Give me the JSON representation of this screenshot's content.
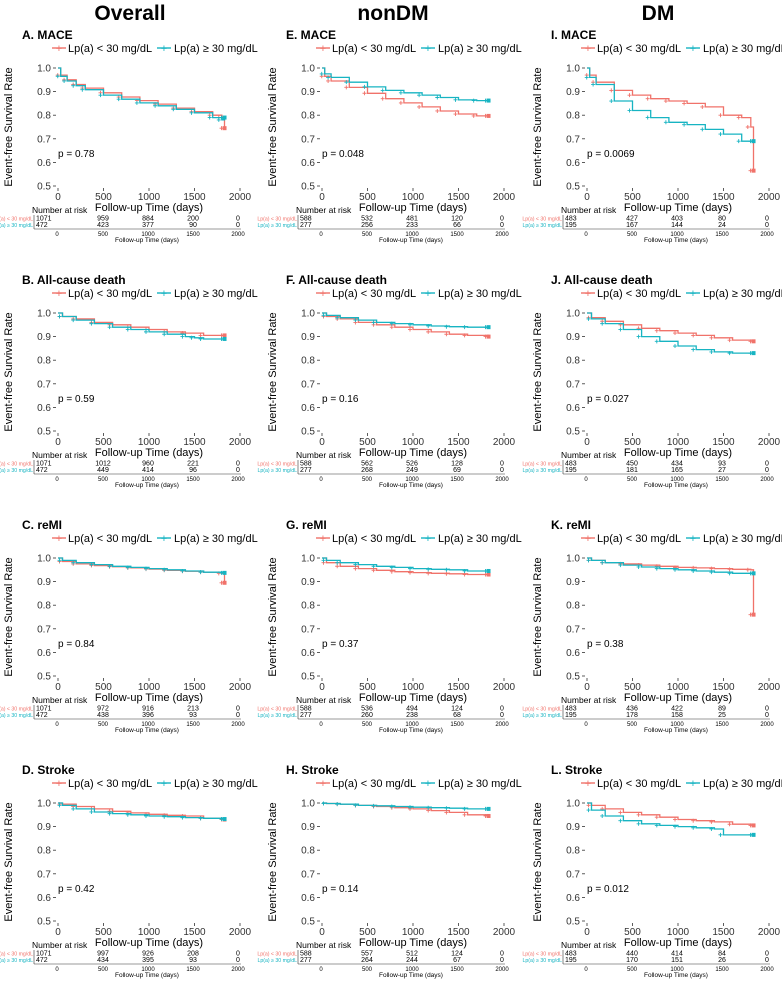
{
  "column_titles": [
    "Overall",
    "nonDM",
    "DM"
  ],
  "colors": {
    "low": "#F0726A",
    "high": "#17B4C2"
  },
  "shared": {
    "legend_low": "Lp(a) < 30 mg/dL",
    "legend_high": "Lp(a) ≥ 30 mg/dL",
    "risk_low": "Lp(a) < 30 mg/dL",
    "risk_high": "Lp(a) ≥ 30 mg/dL",
    "ylabel": "Event-free Survival Rate",
    "xlabel": "Follow-up Time (days)",
    "risk_title": "Number at risk",
    "risk_xlabel": "Follow-up Time (days)",
    "x_ticks": [
      0,
      500,
      1000,
      1500,
      2000
    ],
    "x_tick_labels": [
      "0",
      "500",
      "1000",
      "1500",
      "2000"
    ],
    "y_ticks": [
      0.5,
      0.6,
      0.7,
      0.8,
      0.9,
      1.0
    ],
    "y_tick_labels": [
      "0.5",
      "0.6",
      "0.7",
      "0.8",
      "0.9",
      "1.0"
    ],
    "xlim": [
      0,
      2000
    ],
    "ylim": [
      0.5,
      1.0
    ]
  },
  "chart_data": [
    {
      "type": "line",
      "title": "A. MACE",
      "pvalue": "p = 0.78",
      "risk": {
        "low": [
          "1071",
          "959",
          "884",
          "200",
          "0"
        ],
        "high": [
          "472",
          "423",
          "377",
          "90",
          "0"
        ]
      },
      "series": [
        {
          "name": "Lp(a) < 30 mg/dL",
          "x": [
            0,
            30,
            100,
            200,
            300,
            500,
            700,
            900,
            1100,
            1300,
            1500,
            1700,
            1800,
            1830
          ],
          "y": [
            1.0,
            0.97,
            0.95,
            0.93,
            0.915,
            0.895,
            0.877,
            0.862,
            0.847,
            0.83,
            0.815,
            0.8,
            0.79,
            0.745
          ]
        },
        {
          "name": "Lp(a) ≥ 30 mg/dL",
          "x": [
            0,
            30,
            100,
            200,
            300,
            500,
            700,
            900,
            1100,
            1300,
            1500,
            1700,
            1800,
            1830
          ],
          "y": [
            1.0,
            0.965,
            0.945,
            0.925,
            0.908,
            0.885,
            0.868,
            0.852,
            0.84,
            0.825,
            0.81,
            0.79,
            0.78,
            0.79
          ]
        }
      ]
    },
    {
      "type": "line",
      "title": "E. MACE",
      "pvalue": "p = 0.048",
      "risk": {
        "low": [
          "588",
          "532",
          "481",
          "120",
          "0"
        ],
        "high": [
          "277",
          "256",
          "233",
          "66",
          "0"
        ]
      },
      "series": [
        {
          "name": "Lp(a) < 30 mg/dL",
          "x": [
            0,
            30,
            100,
            300,
            500,
            700,
            900,
            1100,
            1300,
            1500,
            1700,
            1830
          ],
          "y": [
            1.0,
            0.965,
            0.945,
            0.918,
            0.893,
            0.87,
            0.852,
            0.835,
            0.818,
            0.805,
            0.797,
            0.797
          ]
        },
        {
          "name": "Lp(a) ≥ 30 mg/dL",
          "x": [
            0,
            30,
            100,
            300,
            500,
            700,
            900,
            1100,
            1300,
            1500,
            1700,
            1830
          ],
          "y": [
            1.0,
            0.975,
            0.96,
            0.94,
            0.92,
            0.905,
            0.895,
            0.885,
            0.875,
            0.865,
            0.862,
            0.862
          ]
        }
      ]
    },
    {
      "type": "line",
      "title": "I. MACE",
      "pvalue": "p = 0.0069",
      "risk": {
        "low": [
          "483",
          "427",
          "403",
          "80",
          "0"
        ],
        "high": [
          "195",
          "167",
          "144",
          "24",
          "0"
        ]
      },
      "series": [
        {
          "name": "Lp(a) < 30 mg/dL",
          "x": [
            0,
            30,
            100,
            300,
            500,
            700,
            900,
            1100,
            1300,
            1500,
            1700,
            1800,
            1830
          ],
          "y": [
            1.0,
            0.97,
            0.94,
            0.905,
            0.885,
            0.87,
            0.86,
            0.85,
            0.835,
            0.8,
            0.79,
            0.75,
            0.565
          ]
        },
        {
          "name": "Lp(a) ≥ 30 mg/dL",
          "x": [
            0,
            30,
            100,
            300,
            500,
            700,
            900,
            1100,
            1300,
            1500,
            1700,
            1830
          ],
          "y": [
            1.0,
            0.96,
            0.93,
            0.86,
            0.82,
            0.79,
            0.77,
            0.76,
            0.74,
            0.72,
            0.69,
            0.69
          ]
        }
      ]
    },
    {
      "type": "line",
      "title": "B. All-cause death",
      "pvalue": "p = 0.59",
      "risk": {
        "low": [
          "1071",
          "1012",
          "960",
          "221",
          "0"
        ],
        "high": [
          "472",
          "449",
          "414",
          "96",
          "0"
        ]
      },
      "series": [
        {
          "name": "Lp(a) < 30 mg/dL",
          "x": [
            0,
            50,
            200,
            400,
            600,
            800,
            1000,
            1200,
            1400,
            1600,
            1830
          ],
          "y": [
            1.0,
            0.985,
            0.975,
            0.96,
            0.95,
            0.94,
            0.93,
            0.92,
            0.915,
            0.905,
            0.905
          ]
        },
        {
          "name": "Lp(a) ≥ 30 mg/dL",
          "x": [
            0,
            50,
            200,
            400,
            600,
            800,
            1000,
            1200,
            1400,
            1500,
            1600,
            1830
          ],
          "y": [
            1.0,
            0.985,
            0.97,
            0.955,
            0.94,
            0.93,
            0.92,
            0.91,
            0.9,
            0.895,
            0.89,
            0.89
          ]
        }
      ]
    },
    {
      "type": "line",
      "title": "F. All-cause death",
      "pvalue": "p = 0.16",
      "risk": {
        "low": [
          "588",
          "562",
          "526",
          "128",
          "0"
        ],
        "high": [
          "277",
          "268",
          "249",
          "69",
          "0"
        ]
      },
      "series": [
        {
          "name": "Lp(a) < 30 mg/dL",
          "x": [
            0,
            50,
            200,
            400,
            600,
            800,
            1000,
            1200,
            1400,
            1600,
            1830
          ],
          "y": [
            1.0,
            0.985,
            0.975,
            0.96,
            0.95,
            0.94,
            0.93,
            0.92,
            0.91,
            0.905,
            0.9
          ]
        },
        {
          "name": "Lp(a) ≥ 30 mg/dL",
          "x": [
            0,
            50,
            200,
            400,
            600,
            800,
            1000,
            1200,
            1400,
            1600,
            1830
          ],
          "y": [
            1.0,
            0.99,
            0.98,
            0.97,
            0.96,
            0.955,
            0.95,
            0.945,
            0.942,
            0.94,
            0.94
          ]
        }
      ]
    },
    {
      "type": "line",
      "title": "J. All-cause death",
      "pvalue": "p = 0.027",
      "risk": {
        "low": [
          "483",
          "450",
          "434",
          "93",
          "0"
        ],
        "high": [
          "195",
          "181",
          "165",
          "27",
          "0"
        ]
      },
      "series": [
        {
          "name": "Lp(a) < 30 mg/dL",
          "x": [
            0,
            50,
            200,
            400,
            600,
            800,
            1000,
            1200,
            1400,
            1600,
            1830
          ],
          "y": [
            1.0,
            0.98,
            0.965,
            0.95,
            0.935,
            0.925,
            0.915,
            0.905,
            0.895,
            0.885,
            0.88
          ]
        },
        {
          "name": "Lp(a) ≥ 30 mg/dL",
          "x": [
            0,
            50,
            200,
            400,
            600,
            800,
            1000,
            1200,
            1400,
            1600,
            1830
          ],
          "y": [
            1.0,
            0.975,
            0.955,
            0.93,
            0.9,
            0.88,
            0.86,
            0.845,
            0.835,
            0.83,
            0.83
          ]
        }
      ]
    },
    {
      "type": "line",
      "title": "C. reMI",
      "pvalue": "p = 0.84",
      "risk": {
        "low": [
          "1071",
          "972",
          "916",
          "213",
          "0"
        ],
        "high": [
          "472",
          "438",
          "396",
          "93",
          "0"
        ]
      },
      "series": [
        {
          "name": "Lp(a) < 30 mg/dL",
          "x": [
            0,
            50,
            200,
            400,
            600,
            800,
            1000,
            1200,
            1400,
            1600,
            1800,
            1830
          ],
          "y": [
            1.0,
            0.985,
            0.975,
            0.968,
            0.963,
            0.958,
            0.953,
            0.948,
            0.944,
            0.94,
            0.935,
            0.895
          ]
        },
        {
          "name": "Lp(a) ≥ 30 mg/dL",
          "x": [
            0,
            50,
            200,
            400,
            600,
            800,
            1000,
            1200,
            1400,
            1600,
            1830
          ],
          "y": [
            1.0,
            0.99,
            0.98,
            0.972,
            0.965,
            0.96,
            0.955,
            0.95,
            0.945,
            0.94,
            0.937
          ]
        }
      ]
    },
    {
      "type": "line",
      "title": "G. reMI",
      "pvalue": "p = 0.37",
      "risk": {
        "low": [
          "588",
          "536",
          "494",
          "124",
          "0"
        ],
        "high": [
          "277",
          "260",
          "238",
          "68",
          "0"
        ]
      },
      "series": [
        {
          "name": "Lp(a) < 30 mg/dL",
          "x": [
            0,
            50,
            200,
            400,
            600,
            800,
            1000,
            1200,
            1400,
            1600,
            1830
          ],
          "y": [
            1.0,
            0.98,
            0.965,
            0.955,
            0.948,
            0.942,
            0.938,
            0.935,
            0.933,
            0.93,
            0.93
          ]
        },
        {
          "name": "Lp(a) ≥ 30 mg/dL",
          "x": [
            0,
            50,
            200,
            400,
            600,
            800,
            1000,
            1200,
            1400,
            1600,
            1830
          ],
          "y": [
            1.0,
            0.99,
            0.98,
            0.972,
            0.965,
            0.96,
            0.955,
            0.952,
            0.95,
            0.945,
            0.945
          ]
        }
      ]
    },
    {
      "type": "line",
      "title": "K. reMI",
      "pvalue": "p = 0.38",
      "risk": {
        "low": [
          "483",
          "436",
          "422",
          "89",
          "0"
        ],
        "high": [
          "195",
          "178",
          "158",
          "25",
          "0"
        ]
      },
      "series": [
        {
          "name": "Lp(a) < 30 mg/dL",
          "x": [
            0,
            50,
            200,
            400,
            600,
            800,
            1000,
            1200,
            1400,
            1600,
            1800,
            1830
          ],
          "y": [
            1.0,
            0.99,
            0.98,
            0.975,
            0.97,
            0.965,
            0.96,
            0.958,
            0.955,
            0.952,
            0.95,
            0.76
          ]
        },
        {
          "name": "Lp(a) ≥ 30 mg/dL",
          "x": [
            0,
            50,
            200,
            400,
            600,
            800,
            1000,
            1200,
            1400,
            1600,
            1830
          ],
          "y": [
            1.0,
            0.99,
            0.98,
            0.97,
            0.962,
            0.955,
            0.95,
            0.945,
            0.94,
            0.935,
            0.935
          ]
        }
      ]
    },
    {
      "type": "line",
      "title": "D. Stroke",
      "pvalue": "p = 0.42",
      "risk": {
        "low": [
          "1071",
          "997",
          "926",
          "208",
          "0"
        ],
        "high": [
          "472",
          "434",
          "395",
          "93",
          "0"
        ]
      },
      "series": [
        {
          "name": "Lp(a) < 30 mg/dL",
          "x": [
            0,
            50,
            200,
            400,
            600,
            800,
            1000,
            1200,
            1400,
            1600,
            1830
          ],
          "y": [
            1.0,
            0.995,
            0.985,
            0.975,
            0.965,
            0.958,
            0.952,
            0.948,
            0.945,
            0.935,
            0.93
          ]
        },
        {
          "name": "Lp(a) ≥ 30 mg/dL",
          "x": [
            0,
            50,
            200,
            400,
            600,
            800,
            1000,
            1200,
            1400,
            1600,
            1830
          ],
          "y": [
            1.0,
            0.99,
            0.975,
            0.962,
            0.955,
            0.95,
            0.945,
            0.942,
            0.938,
            0.935,
            0.932
          ]
        }
      ]
    },
    {
      "type": "line",
      "title": "H. Stroke",
      "pvalue": "p = 0.14",
      "risk": {
        "low": [
          "588",
          "557",
          "512",
          "124",
          "0"
        ],
        "high": [
          "277",
          "264",
          "244",
          "67",
          "0"
        ]
      },
      "series": [
        {
          "name": "Lp(a) < 30 mg/dL",
          "x": [
            0,
            50,
            200,
            400,
            600,
            800,
            1000,
            1200,
            1400,
            1600,
            1830
          ],
          "y": [
            1.0,
            0.998,
            0.995,
            0.99,
            0.985,
            0.98,
            0.975,
            0.968,
            0.96,
            0.95,
            0.945
          ]
        },
        {
          "name": "Lp(a) ≥ 30 mg/dL",
          "x": [
            0,
            50,
            200,
            400,
            600,
            800,
            1000,
            1200,
            1400,
            1600,
            1830
          ],
          "y": [
            1.0,
            0.998,
            0.995,
            0.99,
            0.988,
            0.985,
            0.982,
            0.98,
            0.978,
            0.975,
            0.975
          ]
        }
      ]
    },
    {
      "type": "line",
      "title": "L. Stroke",
      "pvalue": "p = 0.012",
      "risk": {
        "low": [
          "483",
          "440",
          "414",
          "84",
          "0"
        ],
        "high": [
          "195",
          "170",
          "151",
          "26",
          "0"
        ]
      },
      "series": [
        {
          "name": "Lp(a) < 30 mg/dL",
          "x": [
            0,
            50,
            200,
            400,
            600,
            800,
            1000,
            1200,
            1400,
            1600,
            1830
          ],
          "y": [
            1.0,
            0.99,
            0.975,
            0.96,
            0.95,
            0.94,
            0.93,
            0.925,
            0.92,
            0.91,
            0.905
          ]
        },
        {
          "name": "Lp(a) ≥ 30 mg/dL",
          "x": [
            0,
            50,
            200,
            400,
            600,
            800,
            1000,
            1200,
            1400,
            1500,
            1830
          ],
          "y": [
            1.0,
            0.97,
            0.945,
            0.925,
            0.912,
            0.905,
            0.9,
            0.895,
            0.89,
            0.865,
            0.865
          ]
        }
      ]
    }
  ]
}
